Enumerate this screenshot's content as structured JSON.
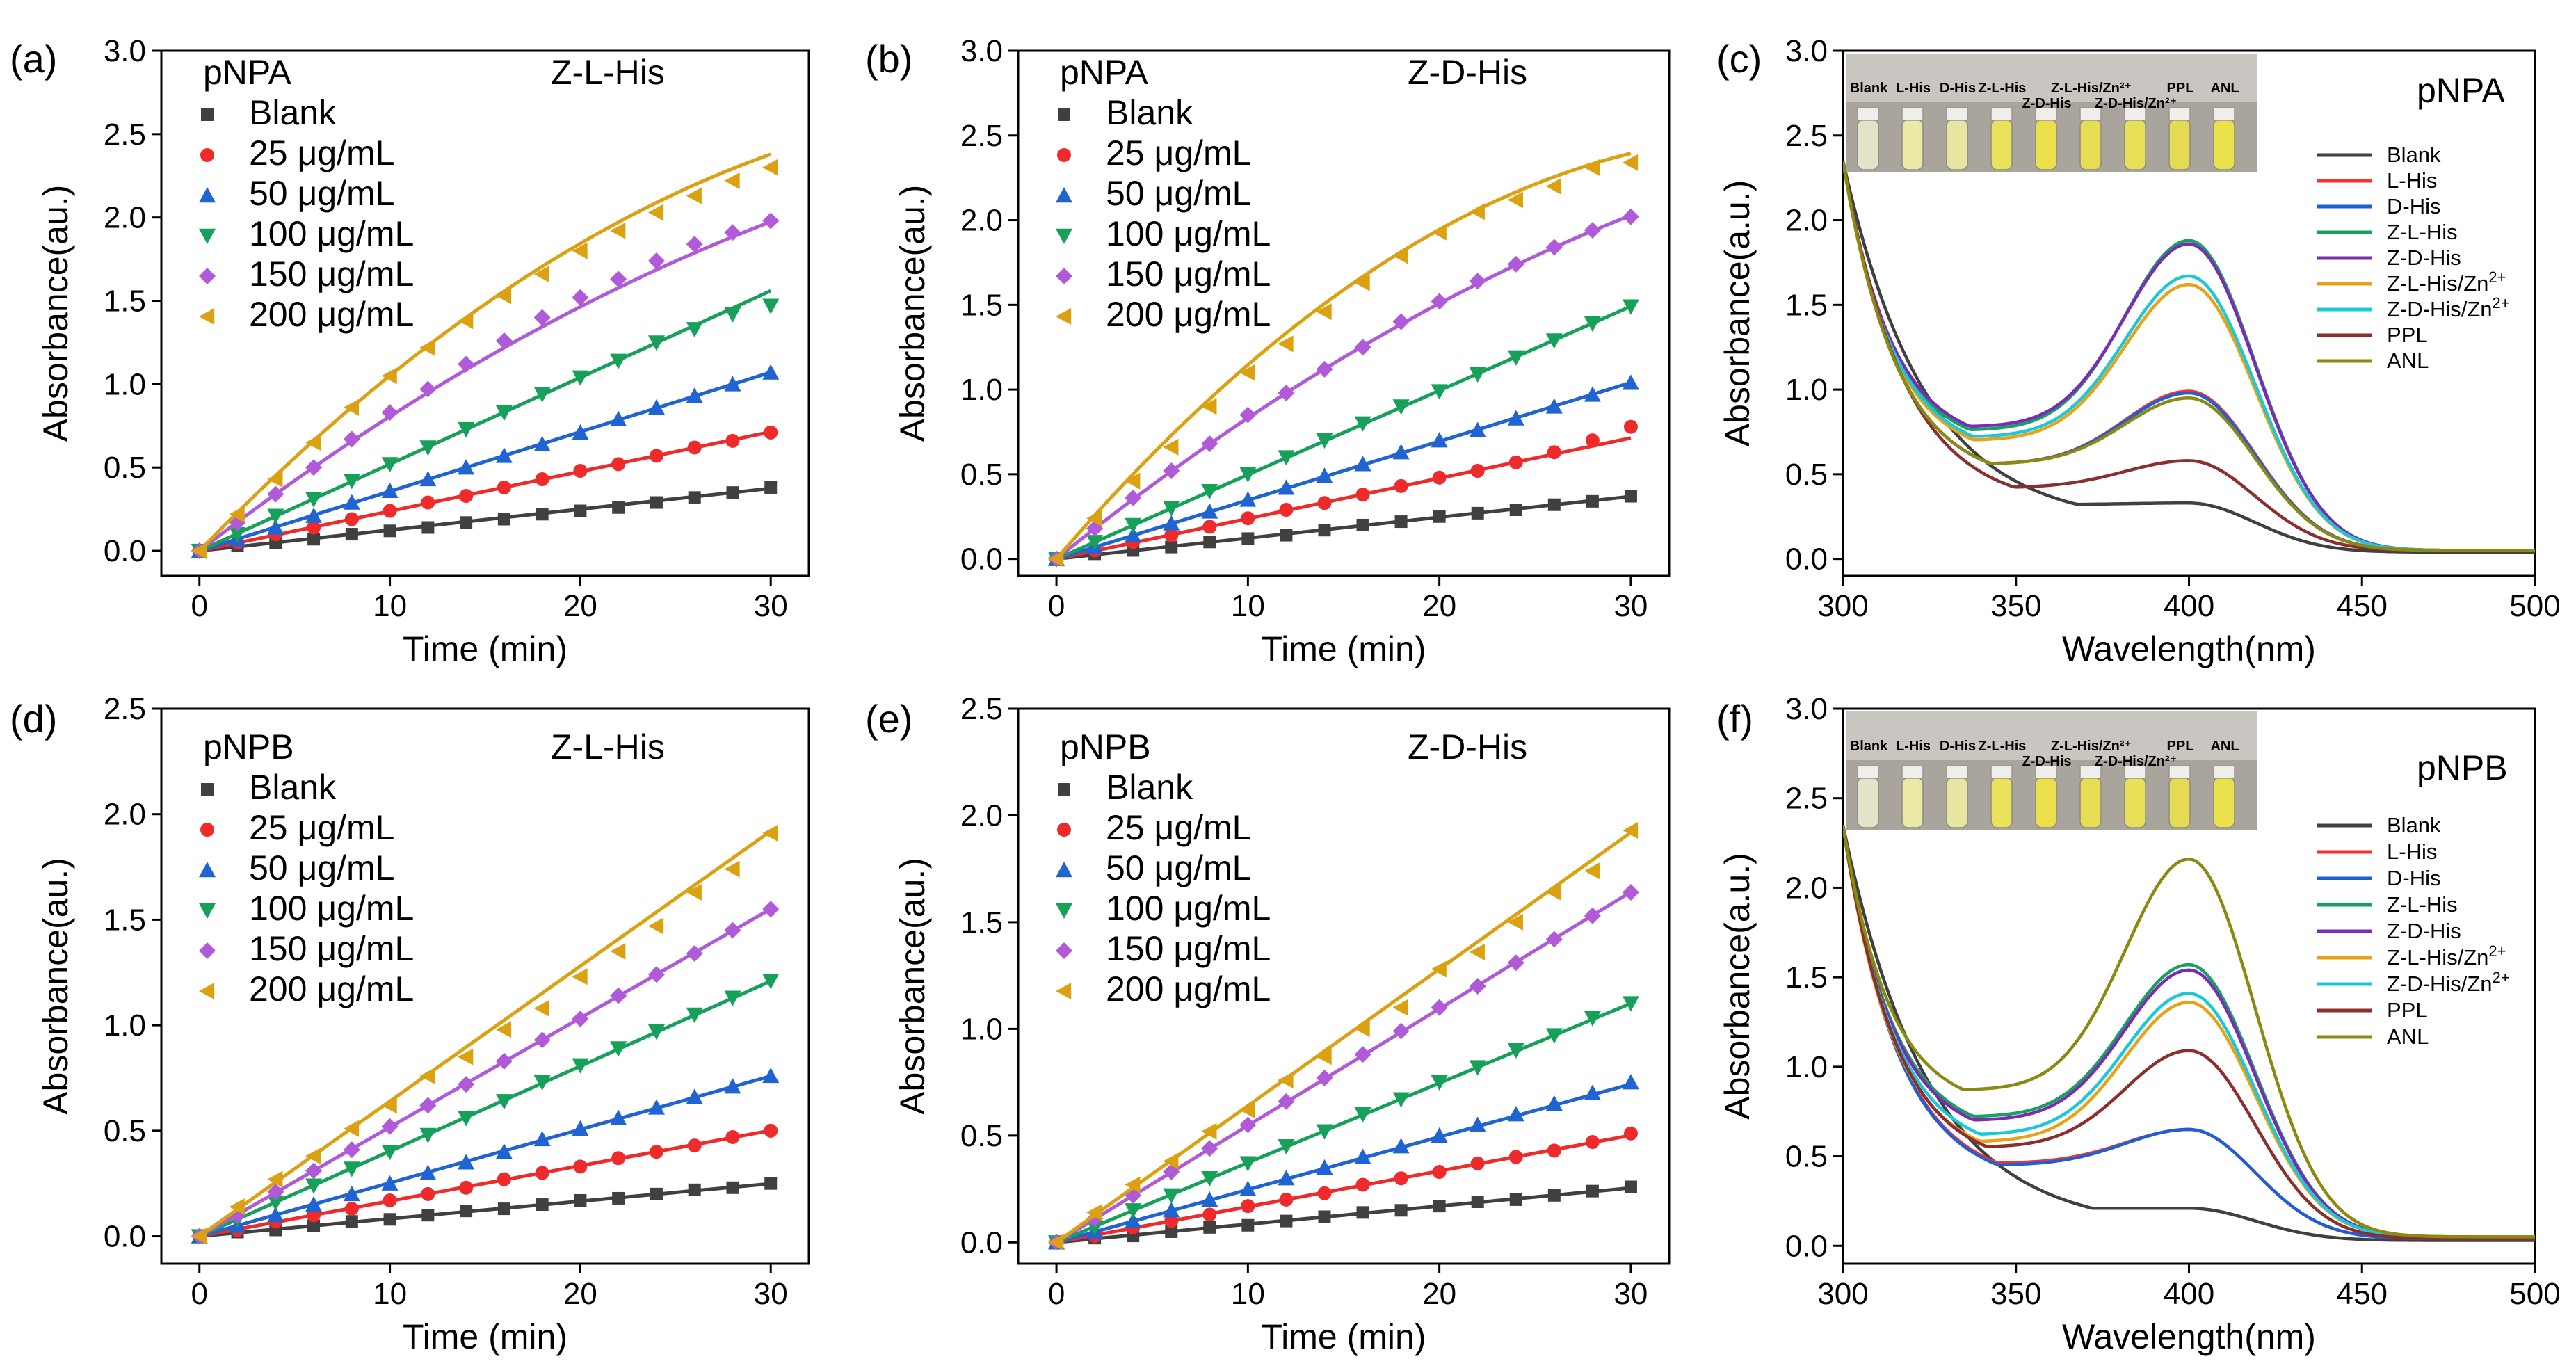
{
  "colors": {
    "blank": "#404040",
    "c25": "#ee2a2a",
    "c50": "#1f64d2",
    "c100": "#17a05a",
    "c150": "#b05ad9",
    "c200": "#dba110",
    "L_His": "#ff2d2d",
    "D_His": "#1f5fd6",
    "Z_L_His": "#18a060",
    "Z_D_His": "#7b2bb5",
    "Z_L_His_Zn": "#e6a317",
    "Z_D_His_Zn": "#1cc8d8",
    "PPL": "#8b2e2e",
    "ANL": "#8a8a10"
  },
  "chart_data": [
    {
      "panel": "(a)",
      "type": "scatter",
      "substrate": "pNPA",
      "sample": "Z-L-His",
      "xlabel": "Time (min)",
      "ylabel": "Absorbance(au.)",
      "xlim": [
        -2,
        32
      ],
      "ylim": [
        -0.15,
        3.0
      ],
      "xticks": [
        0,
        10,
        20,
        30
      ],
      "yticks": [
        0.0,
        0.5,
        1.0,
        1.5,
        2.0,
        2.5,
        3.0
      ],
      "yfmt": 1,
      "x": [
        0,
        2,
        4,
        6,
        8,
        10,
        12,
        14,
        16,
        18,
        20,
        22,
        24,
        26,
        28,
        30
      ],
      "series": [
        {
          "name": "Blank",
          "marker": "square",
          "color": "#404040",
          "fit": [
            0.0125,
            0
          ],
          "values": [
            0,
            0.03,
            0.05,
            0.07,
            0.1,
            0.12,
            0.14,
            0.17,
            0.19,
            0.22,
            0.24,
            0.26,
            0.29,
            0.32,
            0.35,
            0.38
          ]
        },
        {
          "name": "25 μg/mL",
          "marker": "circle",
          "color": "#ee2a2a",
          "fit": [
            0.0238,
            0
          ],
          "values": [
            0,
            0.05,
            0.1,
            0.14,
            0.19,
            0.24,
            0.29,
            0.33,
            0.38,
            0.43,
            0.48,
            0.52,
            0.57,
            0.62,
            0.66,
            0.71
          ]
        },
        {
          "name": "50 μg/mL",
          "marker": "triangle-up",
          "color": "#1f64d2",
          "fit": [
            0.0357,
            0
          ],
          "values": [
            0,
            0.07,
            0.14,
            0.21,
            0.29,
            0.36,
            0.43,
            0.5,
            0.57,
            0.64,
            0.71,
            0.79,
            0.86,
            0.93,
            1.0,
            1.07
          ]
        },
        {
          "name": "100 μg/mL",
          "marker": "triangle-down",
          "color": "#17a05a",
          "fit": [
            0.052,
            0
          ],
          "values": [
            0,
            0.1,
            0.21,
            0.31,
            0.42,
            0.52,
            0.62,
            0.73,
            0.83,
            0.94,
            1.04,
            1.14,
            1.25,
            1.33,
            1.42,
            1.47
          ]
        },
        {
          "name": "150 μg/mL",
          "marker": "diamond",
          "color": "#b05ad9",
          "fit": [
            0.088,
            0.00074
          ],
          "values": [
            0,
            0.17,
            0.34,
            0.5,
            0.67,
            0.83,
            0.97,
            1.12,
            1.26,
            1.4,
            1.52,
            1.63,
            1.74,
            1.84,
            1.91,
            1.98
          ]
        },
        {
          "name": "200 μg/mL",
          "marker": "triangle-left",
          "color": "#dba110",
          "fit": [
            0.118,
            0.00129
          ],
          "values": [
            0,
            0.22,
            0.43,
            0.65,
            0.86,
            1.05,
            1.22,
            1.38,
            1.53,
            1.66,
            1.8,
            1.92,
            2.03,
            2.13,
            2.22,
            2.3
          ]
        }
      ]
    },
    {
      "panel": "(b)",
      "type": "scatter",
      "substrate": "pNPA",
      "sample": "Z-D-His",
      "xlabel": "Time (min)",
      "ylabel": "Absorbance(au.)",
      "xlim": [
        -2,
        32
      ],
      "ylim": [
        -0.1,
        3.0
      ],
      "xticks": [
        0,
        10,
        20,
        30
      ],
      "yticks": [
        0.0,
        0.5,
        1.0,
        1.5,
        2.0,
        2.5,
        3.0
      ],
      "yfmt": 1,
      "x": [
        0,
        2,
        4,
        6,
        8,
        10,
        12,
        14,
        16,
        18,
        20,
        22,
        24,
        26,
        28,
        30
      ],
      "series": [
        {
          "name": "Blank",
          "marker": "square",
          "color": "#404040",
          "fit": [
            0.0123,
            0
          ],
          "values": [
            0,
            0.03,
            0.05,
            0.07,
            0.1,
            0.12,
            0.14,
            0.17,
            0.2,
            0.22,
            0.25,
            0.27,
            0.29,
            0.32,
            0.34,
            0.37
          ]
        },
        {
          "name": "25 μg/mL",
          "marker": "circle",
          "color": "#ee2a2a",
          "fit": [
            0.0238,
            0
          ],
          "values": [
            0,
            0.05,
            0.1,
            0.14,
            0.19,
            0.24,
            0.29,
            0.33,
            0.38,
            0.43,
            0.48,
            0.52,
            0.57,
            0.63,
            0.7,
            0.78
          ]
        },
        {
          "name": "50 μg/mL",
          "marker": "triangle-up",
          "color": "#1f64d2",
          "fit": [
            0.0347,
            0
          ],
          "values": [
            0,
            0.07,
            0.14,
            0.21,
            0.28,
            0.35,
            0.42,
            0.49,
            0.56,
            0.63,
            0.7,
            0.76,
            0.83,
            0.9,
            0.97,
            1.04
          ]
        },
        {
          "name": "100 μg/mL",
          "marker": "triangle-down",
          "color": "#17a05a",
          "fit": [
            0.0497,
            0
          ],
          "values": [
            0,
            0.1,
            0.2,
            0.3,
            0.4,
            0.5,
            0.6,
            0.7,
            0.8,
            0.9,
            0.99,
            1.09,
            1.19,
            1.29,
            1.39,
            1.49
          ]
        },
        {
          "name": "150 μg/mL",
          "marker": "diamond",
          "color": "#b05ad9",
          "fit": [
            0.091,
            0.00078
          ],
          "values": [
            0,
            0.18,
            0.36,
            0.52,
            0.68,
            0.85,
            0.98,
            1.12,
            1.25,
            1.4,
            1.52,
            1.64,
            1.74,
            1.84,
            1.94,
            2.02
          ]
        },
        {
          "name": "200 μg/mL",
          "marker": "triangle-left",
          "color": "#dba110",
          "fit": [
            0.132,
            0.00174
          ],
          "values": [
            0,
            0.24,
            0.46,
            0.66,
            0.9,
            1.1,
            1.27,
            1.46,
            1.63,
            1.79,
            1.93,
            2.05,
            2.12,
            2.2,
            2.31,
            2.34
          ]
        }
      ]
    },
    {
      "panel": "(c)",
      "type": "line",
      "substrate": "pNPA",
      "xlabel": "Wavelength(nm)",
      "ylabel": "Absorbance(a.u.)",
      "xlim": [
        300,
        500
      ],
      "ylim": [
        -0.1,
        3.0
      ],
      "xticks": [
        300,
        350,
        400,
        450,
        500
      ],
      "yticks": [
        0.0,
        0.5,
        1.0,
        1.5,
        2.0,
        2.5,
        3.0
      ],
      "yfmt": 1,
      "series": [
        {
          "name": "Blank",
          "color": "#404040",
          "valley": 0.32,
          "vx": 368,
          "peak": 0.33,
          "tail": 0.04
        },
        {
          "name": "L-His",
          "color": "#ff2d2d",
          "valley": 0.56,
          "vx": 343,
          "peak": 0.99,
          "tail": 0.05
        },
        {
          "name": "D-His",
          "color": "#1f5fd6",
          "valley": 0.56,
          "vx": 343,
          "peak": 0.98,
          "tail": 0.05
        },
        {
          "name": "Z-L-His",
          "color": "#18a060",
          "valley": 0.76,
          "vx": 337,
          "peak": 1.88,
          "tail": 0.05
        },
        {
          "name": "Z-D-His",
          "color": "#7b2bb5",
          "valley": 0.78,
          "vx": 337,
          "peak": 1.86,
          "tail": 0.05
        },
        {
          "name": "Z-L-His/Zn2+",
          "color": "#e6a317",
          "valley": 0.7,
          "vx": 338,
          "peak": 1.62,
          "tail": 0.05
        },
        {
          "name": "Z-D-His/Zn2+",
          "color": "#1cc8d8",
          "valley": 0.72,
          "vx": 338,
          "peak": 1.67,
          "tail": 0.05
        },
        {
          "name": "PPL",
          "color": "#8b2e2e",
          "valley": 0.42,
          "vx": 350,
          "peak": 0.58,
          "tail": 0.05
        },
        {
          "name": "ANL",
          "color": "#8a8a10",
          "valley": 0.56,
          "vx": 343,
          "peak": 0.95,
          "tail": 0.05
        }
      ],
      "photo_labels": [
        "Blank",
        "L-His",
        "D-His",
        "Z-L-His",
        "Z-D-His",
        "Z-L-His/Zn²⁺",
        "Z-D-His/Zn²⁺",
        "PPL",
        "ANL"
      ]
    },
    {
      "panel": "(d)",
      "type": "scatter",
      "substrate": "pNPB",
      "sample": "Z-L-His",
      "xlabel": "Time (min)",
      "ylabel": "Absorbance(au.)",
      "xlim": [
        -2,
        32
      ],
      "ylim": [
        -0.13,
        2.5
      ],
      "xticks": [
        0,
        10,
        20,
        30
      ],
      "yticks": [
        0.0,
        0.5,
        1.0,
        1.5,
        2.0,
        2.5
      ],
      "yfmt": 1,
      "x": [
        0,
        2,
        4,
        6,
        8,
        10,
        12,
        14,
        16,
        18,
        20,
        22,
        24,
        26,
        28,
        30
      ],
      "series": [
        {
          "name": "Blank",
          "marker": "square",
          "color": "#404040",
          "fit": [
            0.0083,
            0
          ],
          "values": [
            0,
            0.02,
            0.03,
            0.05,
            0.07,
            0.08,
            0.1,
            0.12,
            0.13,
            0.15,
            0.17,
            0.18,
            0.2,
            0.22,
            0.23,
            0.25
          ]
        },
        {
          "name": "25 μg/mL",
          "marker": "circle",
          "color": "#ee2a2a",
          "fit": [
            0.0167,
            0
          ],
          "values": [
            0,
            0.03,
            0.07,
            0.1,
            0.13,
            0.17,
            0.2,
            0.23,
            0.27,
            0.3,
            0.33,
            0.37,
            0.4,
            0.43,
            0.47,
            0.5
          ]
        },
        {
          "name": "50 μg/mL",
          "marker": "triangle-up",
          "color": "#1f64d2",
          "fit": [
            0.0253,
            0
          ],
          "values": [
            0,
            0.05,
            0.1,
            0.15,
            0.2,
            0.25,
            0.3,
            0.35,
            0.4,
            0.46,
            0.51,
            0.56,
            0.61,
            0.66,
            0.71,
            0.76
          ]
        },
        {
          "name": "100 μg/mL",
          "marker": "triangle-down",
          "color": "#17a05a",
          "fit": [
            0.0403,
            0
          ],
          "values": [
            0,
            0.08,
            0.16,
            0.24,
            0.32,
            0.4,
            0.48,
            0.56,
            0.64,
            0.73,
            0.81,
            0.89,
            0.97,
            1.05,
            1.13,
            1.21
          ]
        },
        {
          "name": "150 μg/mL",
          "marker": "diamond",
          "color": "#b05ad9",
          "fit": [
            0.0517,
            0
          ],
          "values": [
            0,
            0.1,
            0.21,
            0.31,
            0.41,
            0.52,
            0.62,
            0.72,
            0.83,
            0.93,
            1.03,
            1.14,
            1.24,
            1.34,
            1.45,
            1.55
          ]
        },
        {
          "name": "200 μg/mL",
          "marker": "triangle-left",
          "color": "#dba110",
          "fit": [
            0.064,
            0
          ],
          "values": [
            0,
            0.14,
            0.27,
            0.38,
            0.51,
            0.62,
            0.76,
            0.85,
            0.98,
            1.08,
            1.23,
            1.35,
            1.47,
            1.63,
            1.74,
            1.91
          ]
        }
      ]
    },
    {
      "panel": "(e)",
      "type": "scatter",
      "substrate": "pNPB",
      "sample": "Z-D-His",
      "xlabel": "Time (min)",
      "ylabel": "Absorbance(au.)",
      "xlim": [
        -2,
        32
      ],
      "ylim": [
        -0.1,
        2.5
      ],
      "xticks": [
        0,
        10,
        20,
        30
      ],
      "yticks": [
        0.0,
        0.5,
        1.0,
        1.5,
        2.0,
        2.5
      ],
      "yfmt": 1,
      "x": [
        0,
        2,
        4,
        6,
        8,
        10,
        12,
        14,
        16,
        18,
        20,
        22,
        24,
        26,
        28,
        30
      ],
      "series": [
        {
          "name": "Blank",
          "marker": "square",
          "color": "#404040",
          "fit": [
            0.0085,
            0
          ],
          "values": [
            0,
            0.02,
            0.03,
            0.05,
            0.07,
            0.08,
            0.1,
            0.12,
            0.14,
            0.15,
            0.17,
            0.19,
            0.2,
            0.22,
            0.24,
            0.26
          ]
        },
        {
          "name": "25 μg/mL",
          "marker": "circle",
          "color": "#ee2a2a",
          "fit": [
            0.0167,
            0
          ],
          "values": [
            0,
            0.03,
            0.07,
            0.1,
            0.13,
            0.17,
            0.2,
            0.23,
            0.27,
            0.3,
            0.33,
            0.37,
            0.4,
            0.43,
            0.47,
            0.51
          ]
        },
        {
          "name": "50 μg/mL",
          "marker": "triangle-up",
          "color": "#1f64d2",
          "fit": [
            0.0247,
            0
          ],
          "values": [
            0,
            0.05,
            0.1,
            0.15,
            0.2,
            0.25,
            0.3,
            0.35,
            0.4,
            0.45,
            0.5,
            0.55,
            0.6,
            0.65,
            0.7,
            0.75
          ]
        },
        {
          "name": "100 μg/mL",
          "marker": "triangle-down",
          "color": "#17a05a",
          "fit": [
            0.0373,
            0
          ],
          "values": [
            0,
            0.07,
            0.15,
            0.22,
            0.3,
            0.37,
            0.45,
            0.52,
            0.6,
            0.67,
            0.75,
            0.82,
            0.9,
            0.97,
            1.05,
            1.12
          ]
        },
        {
          "name": "150 μg/mL",
          "marker": "diamond",
          "color": "#b05ad9",
          "fit": [
            0.0547,
            0
          ],
          "values": [
            0,
            0.11,
            0.22,
            0.33,
            0.44,
            0.55,
            0.66,
            0.77,
            0.88,
            0.99,
            1.1,
            1.2,
            1.31,
            1.42,
            1.53,
            1.64
          ]
        },
        {
          "name": "200 μg/mL",
          "marker": "triangle-left",
          "color": "#dba110",
          "fit": [
            0.064,
            0
          ],
          "values": [
            0,
            0.14,
            0.27,
            0.38,
            0.52,
            0.62,
            0.76,
            0.87,
            1.0,
            1.1,
            1.28,
            1.36,
            1.5,
            1.64,
            1.74,
            1.93
          ]
        }
      ]
    },
    {
      "panel": "(f)",
      "type": "line",
      "substrate": "pNPB",
      "xlabel": "Wavelength(nm)",
      "ylabel": "Absorbance(a.u.)",
      "xlim": [
        300,
        500
      ],
      "ylim": [
        -0.1,
        3.0
      ],
      "xticks": [
        300,
        350,
        400,
        450,
        500
      ],
      "yticks": [
        0.0,
        0.5,
        1.0,
        1.5,
        2.0,
        2.5,
        3.0
      ],
      "yfmt": 1,
      "series": [
        {
          "name": "Blank",
          "color": "#404040",
          "valley": 0.21,
          "vx": 372,
          "peak": 0.21,
          "tail": 0.03
        },
        {
          "name": "L-His",
          "color": "#ff2d2d",
          "valley": 0.46,
          "vx": 345,
          "peak": 0.65,
          "tail": 0.04
        },
        {
          "name": "D-His",
          "color": "#1f5fd6",
          "valley": 0.45,
          "vx": 345,
          "peak": 0.65,
          "tail": 0.04
        },
        {
          "name": "Z-L-His",
          "color": "#18a060",
          "valley": 0.72,
          "vx": 338,
          "peak": 1.57,
          "tail": 0.05
        },
        {
          "name": "Z-D-His",
          "color": "#7b2bb5",
          "valley": 0.7,
          "vx": 338,
          "peak": 1.54,
          "tail": 0.05
        },
        {
          "name": "Z-L-His/Zn2+",
          "color": "#e6a317",
          "valley": 0.58,
          "vx": 340,
          "peak": 1.36,
          "tail": 0.05
        },
        {
          "name": "Z-D-His/Zn2+",
          "color": "#1cc8d8",
          "valley": 0.62,
          "vx": 340,
          "peak": 1.41,
          "tail": 0.05
        },
        {
          "name": "PPL",
          "color": "#8b2e2e",
          "valley": 0.55,
          "vx": 342,
          "peak": 1.09,
          "tail": 0.04
        },
        {
          "name": "ANL",
          "color": "#8a8a10",
          "valley": 0.87,
          "vx": 335,
          "peak": 2.16,
          "tail": 0.05
        }
      ],
      "photo_labels": [
        "Blank",
        "L-His",
        "D-His",
        "Z-L-His",
        "Z-D-His",
        "Z-L-His/Zn²⁺",
        "Z-D-His/Zn²⁺",
        "PPL",
        "ANL"
      ]
    }
  ]
}
